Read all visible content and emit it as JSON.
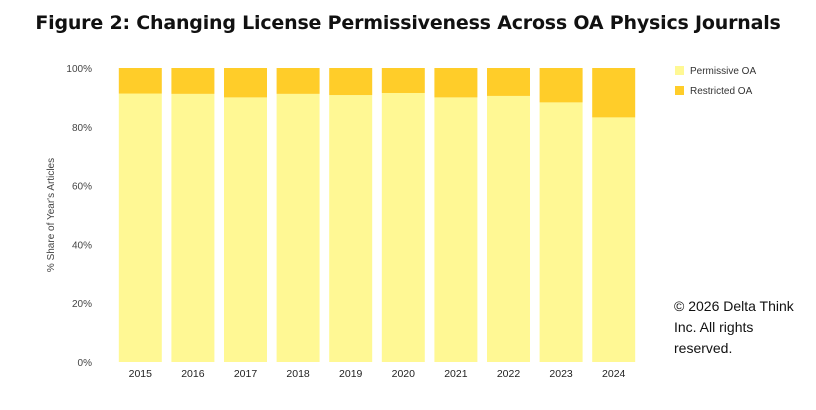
{
  "title": "Figure 2: Changing License Permissiveness Across OA Physics Journals",
  "copyright": "© 2026 Delta Think Inc. All rights reserved.",
  "colors": {
    "permissive": "#fff894",
    "restricted": "#ffcd29",
    "axis_text": "#444444"
  },
  "chart_data": {
    "type": "bar",
    "stacked": true,
    "categories": [
      "2015",
      "2016",
      "2017",
      "2018",
      "2019",
      "2020",
      "2021",
      "2022",
      "2023",
      "2024"
    ],
    "series": [
      {
        "name": "Permissive OA",
        "values": [
          91.3,
          91.2,
          90.0,
          91.2,
          90.8,
          91.5,
          90.0,
          90.5,
          88.3,
          83.2
        ]
      },
      {
        "name": "Restricted OA",
        "values": [
          8.7,
          8.8,
          10.0,
          8.8,
          9.2,
          8.5,
          10.0,
          9.5,
          11.7,
          16.8
        ]
      }
    ],
    "ylabel": "% Share of Year's Articles",
    "xlabel": "",
    "ylim": [
      0,
      100
    ],
    "yticks": [
      "0%",
      "20%",
      "40%",
      "60%",
      "80%",
      "100%"
    ],
    "grid": false,
    "legend_position": "right"
  }
}
